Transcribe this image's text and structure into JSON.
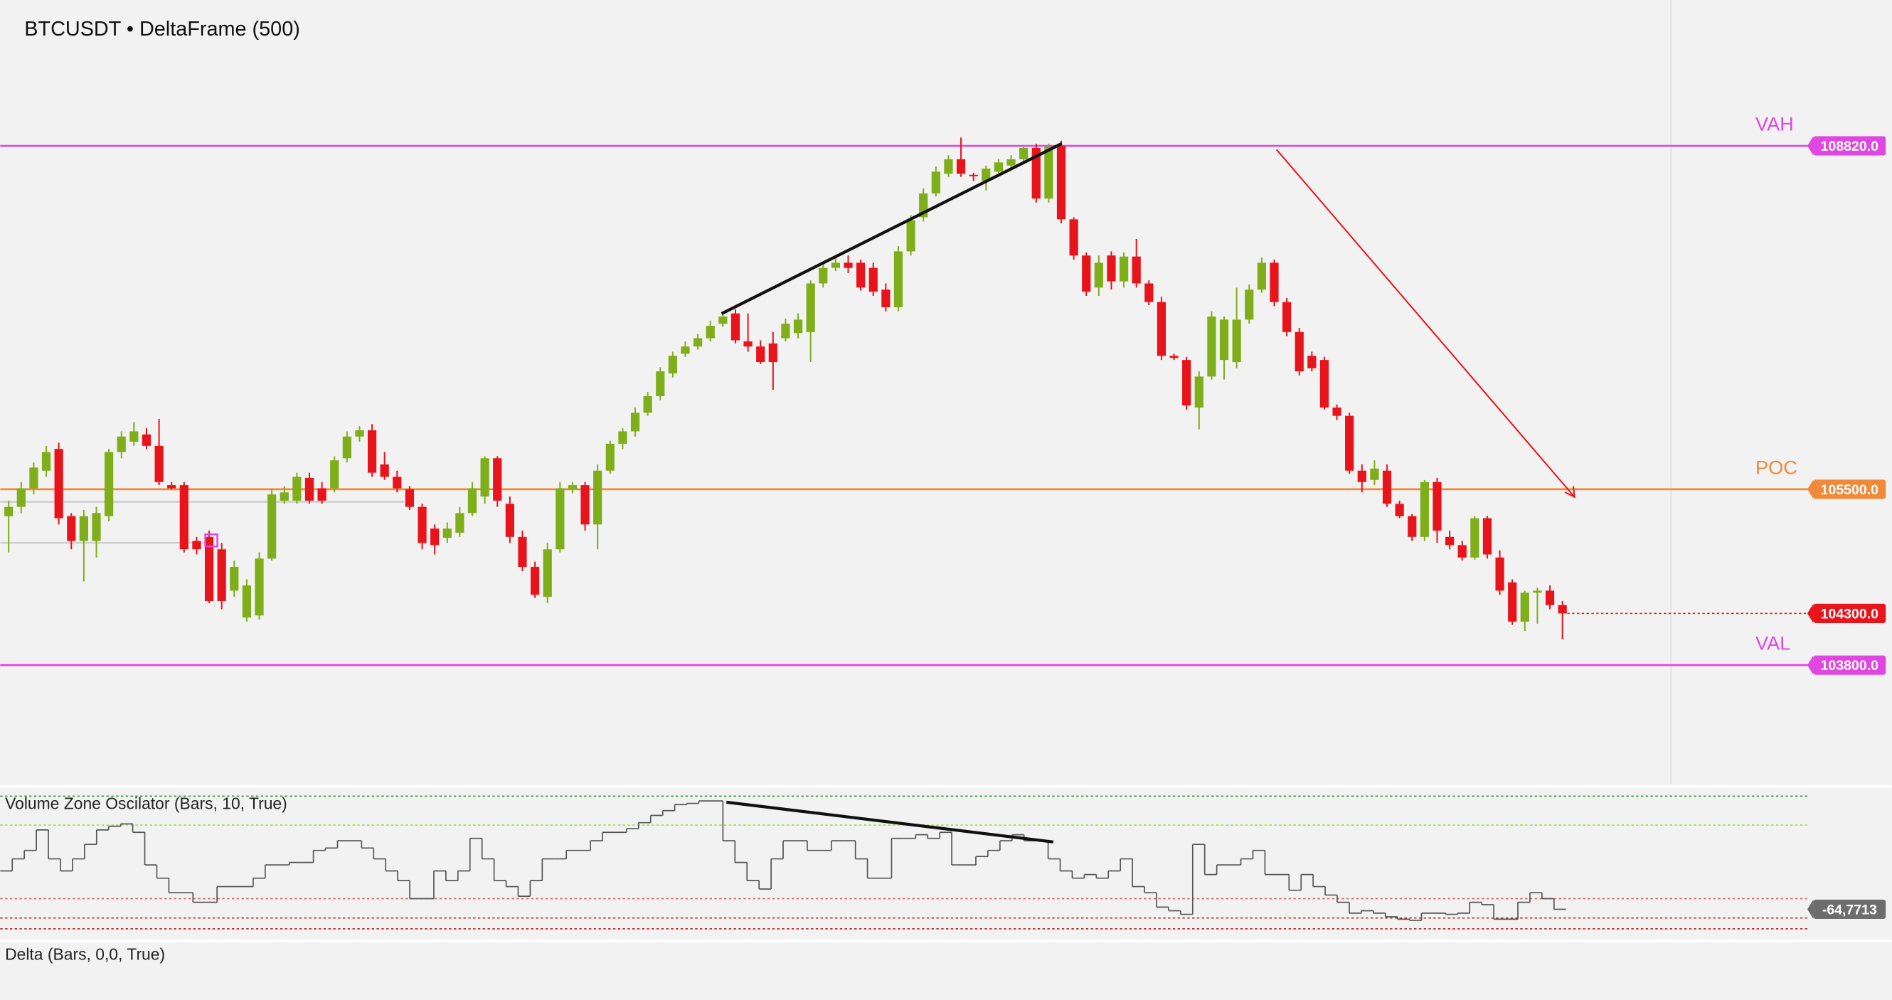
{
  "chart_data": [
    {
      "type": "candlestick",
      "title": "BTCUSDT • DeltaFrame (500)",
      "open": [
        105240,
        105330,
        105510,
        105680,
        105890,
        105240,
        105000,
        105000,
        105240,
        105860,
        105960,
        106030,
        105920,
        105540,
        105540,
        105000,
        105040,
        104920,
        104520,
        104260,
        104280,
        104830,
        105390,
        105390,
        105610,
        105510,
        105510,
        105800,
        106010,
        106070,
        105740,
        105620,
        105500,
        105330,
        105120,
        105030,
        105080,
        105270,
        105430,
        105800,
        105360,
        105040,
        104750,
        104460,
        104920,
        105500,
        105540,
        105160,
        105680,
        105940,
        106060,
        106240,
        106400,
        106620,
        106810,
        106880,
        106960,
        107100,
        107200,
        106930,
        106880,
        106910,
        106960,
        107010,
        107020,
        107490,
        107640,
        107690,
        107690,
        107640,
        107430,
        107260,
        107800,
        108130,
        108360,
        108550,
        108690,
        108540,
        108480,
        108570,
        108630,
        108690,
        108800,
        108310,
        108820,
        108110,
        107760,
        107450,
        107760,
        107510,
        107750,
        107490,
        107310,
        106790,
        106750,
        106290,
        106590,
        106750,
        106730,
        107140,
        107430,
        107690,
        107310,
        107020,
        106790,
        106750,
        106290,
        106210,
        105680,
        105590,
        105680,
        105360,
        105240,
        105040,
        105570,
        105040,
        104960,
        104840,
        105220,
        104840,
        104600,
        104220,
        104500,
        104520,
        104380
      ],
      "high": [
        105390,
        105570,
        105760,
        105920,
        105950,
        105270,
        105300,
        105330,
        105890,
        106060,
        106150,
        106090,
        106180,
        105570,
        105570,
        105040,
        105100,
        104980,
        104810,
        104630,
        104890,
        105510,
        105530,
        105660,
        105660,
        105570,
        105820,
        106060,
        106110,
        106130,
        105860,
        105680,
        105530,
        105360,
        105160,
        105180,
        105330,
        105570,
        105820,
        105820,
        105430,
        105100,
        104800,
        104980,
        105570,
        105570,
        105570,
        105740,
        105970,
        106090,
        106290,
        106440,
        106680,
        106830,
        106930,
        107000,
        107130,
        107220,
        107240,
        107200,
        106940,
        107020,
        107150,
        107200,
        107520,
        107680,
        107750,
        107760,
        107720,
        107690,
        107490,
        107850,
        108150,
        108410,
        108620,
        108730,
        108900,
        108560,
        108630,
        108690,
        108730,
        108830,
        108840,
        108840,
        108870,
        108130,
        107790,
        107760,
        107800,
        107790,
        107920,
        107520,
        107360,
        106810,
        106780,
        106640,
        107220,
        107170,
        107450,
        107480,
        107740,
        107720,
        107350,
        107060,
        106830,
        106780,
        106320,
        106240,
        105740,
        105780,
        105740,
        105390,
        105260,
        105590,
        105610,
        105100,
        105000,
        105240,
        105240,
        104910,
        104630,
        104520,
        104550,
        104570,
        104420
      ],
      "low": [
        104890,
        105270,
        105450,
        105620,
        105160,
        104920,
        104610,
        104840,
        105190,
        105800,
        105920,
        105890,
        105540,
        105500,
        104890,
        104870,
        104400,
        104340,
        104460,
        104220,
        104240,
        104810,
        105360,
        105360,
        105360,
        105360,
        105470,
        105760,
        105960,
        105620,
        105590,
        105470,
        105300,
        104920,
        104870,
        104980,
        105040,
        105240,
        105360,
        105330,
        104980,
        104710,
        104450,
        104400,
        104890,
        105460,
        105100,
        104920,
        105650,
        105890,
        106010,
        106210,
        106360,
        106580,
        106780,
        106850,
        106930,
        107070,
        106910,
        106830,
        106710,
        106460,
        106930,
        106960,
        106730,
        107450,
        107610,
        107590,
        107420,
        107370,
        107220,
        107220,
        107760,
        108090,
        108330,
        108520,
        108520,
        108480,
        108390,
        108550,
        108600,
        108660,
        108270,
        108270,
        108070,
        107720,
        107370,
        107370,
        107430,
        107450,
        107450,
        107280,
        106750,
        106750,
        106270,
        106080,
        106560,
        106560,
        106670,
        107100,
        107400,
        107270,
        106980,
        106600,
        106640,
        106270,
        106170,
        105650,
        105470,
        105540,
        105330,
        105220,
        105000,
        105000,
        104980,
        104920,
        104810,
        104820,
        104830,
        104480,
        104190,
        104130,
        104200,
        104340,
        104050
      ],
      "close": [
        105330,
        105510,
        105710,
        105860,
        105220,
        105000,
        105240,
        105270,
        105860,
        106010,
        106060,
        105920,
        105570,
        105510,
        104920,
        104920,
        104420,
        104420,
        104750,
        104570,
        104830,
        105450,
        105470,
        105620,
        105390,
        105390,
        105780,
        106010,
        106070,
        105660,
        105620,
        105510,
        105330,
        104980,
        104960,
        105120,
        105270,
        105510,
        105800,
        105390,
        105040,
        104750,
        104480,
        104920,
        105510,
        105540,
        105160,
        105680,
        105940,
        106060,
        106240,
        106400,
        106640,
        106790,
        106880,
        106960,
        107080,
        107170,
        106940,
        106880,
        106730,
        106730,
        107100,
        107140,
        107490,
        107640,
        107690,
        107640,
        107450,
        107410,
        107260,
        107800,
        108100,
        108360,
        108570,
        108690,
        108550,
        108530,
        108600,
        108660,
        108690,
        108800,
        108310,
        108810,
        108110,
        107760,
        107410,
        107690,
        107510,
        107750,
        107490,
        107310,
        106790,
        106770,
        106310,
        106590,
        107170,
        107140,
        107140,
        107430,
        107690,
        107310,
        107020,
        106640,
        106670,
        106290,
        106210,
        105680,
        105570,
        105700,
        105360,
        105240,
        105040,
        105570,
        105100,
        104960,
        104840,
        105220,
        104870,
        104520,
        104220,
        104500,
        104520,
        104380,
        104300
      ],
      "up_color": "#7fae1b",
      "down_color": "#e8141c",
      "ylim": [
        102650,
        110230
      ],
      "levels": [
        {
          "name": "VAH",
          "value": 108820,
          "label": "108820.0",
          "color": "#e046e0"
        },
        {
          "name": "POC",
          "value": 105500,
          "label": "105500.0",
          "color": "#f0893a"
        },
        {
          "name": "VAL",
          "value": 103800,
          "label": "103800.0",
          "color": "#e046e0"
        }
      ],
      "last_price": {
        "value": 104300,
        "label": "104300.0",
        "color": "#e8141c"
      }
    },
    {
      "type": "line",
      "title": "Volume Zone Oscilator (Bars, 10, True)",
      "values": [
        -33,
        -23,
        -16,
        1,
        -23,
        -33,
        -23,
        -11,
        1,
        4,
        6,
        -1,
        -28,
        -39,
        -51,
        -51,
        -59,
        -59,
        -46,
        -46,
        -46,
        -39,
        -28,
        -28,
        -26,
        -26,
        -16,
        -14,
        -8,
        -8,
        -14,
        -23,
        -33,
        -41,
        -56,
        -56,
        -33,
        -41,
        -33,
        -6,
        -23,
        -41,
        -46,
        -54,
        -41,
        -23,
        -23,
        -16,
        -16,
        -8,
        -1,
        -1,
        2,
        7,
        13,
        17,
        22,
        23,
        25,
        25,
        -8,
        -26,
        -41,
        -48,
        -23,
        -8,
        -8,
        -16,
        -16,
        -8,
        -8,
        -23,
        -39,
        -39,
        -6,
        -6,
        -3,
        -6,
        -1,
        -28,
        -28,
        -21,
        -16,
        -8,
        -3,
        -8,
        -8,
        -23,
        -33,
        -39,
        -36,
        -39,
        -33,
        -23,
        -46,
        -51,
        -63,
        -66,
        -69,
        -11,
        -36,
        -28,
        -28,
        -23,
        -16,
        -36,
        -36,
        -49,
        -36,
        -46,
        -53,
        -59,
        -68,
        -66,
        -68,
        -71,
        -73,
        -74,
        -68,
        -68,
        -69,
        -68,
        -59,
        -61,
        -73,
        -73,
        -59,
        -51,
        -56,
        -64.7713
      ],
      "color": "#555555",
      "ylim": [
        -86,
        34
      ],
      "levels": [
        {
          "value": 29,
          "color": "#3a9a3a"
        },
        {
          "value": 5,
          "color": "#a8d63c"
        },
        {
          "value": -56,
          "color": "#e06060"
        },
        {
          "value": -72,
          "color": "#d02020"
        },
        {
          "value": -81,
          "color": "#b01818"
        }
      ],
      "yticks": [
        {
          "value": -64.7713,
          "label": "-64,7713"
        }
      ]
    },
    {
      "type": "bar",
      "title": "Delta (Bars, 0,0, True)"
    }
  ]
}
